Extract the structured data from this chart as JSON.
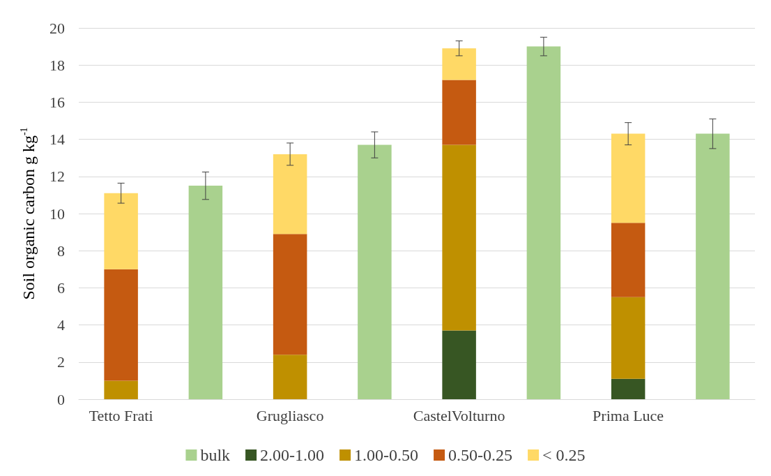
{
  "chart_data": {
    "type": "bar",
    "stacked": true,
    "ylabel": "Soil organic carbon g kg$^{-1}$",
    "categories": [
      "Tetto Frati",
      null,
      "Grugliasco",
      null,
      "CastelVolturno",
      null,
      "Prima Luce",
      null
    ],
    "series": [
      {
        "name": "bulk",
        "color": "#a9d18e",
        "values": [
          null,
          11.5,
          null,
          13.7,
          null,
          19.0,
          null,
          14.3
        ],
        "errors": [
          null,
          0.74,
          null,
          0.7,
          null,
          0.5,
          null,
          0.8
        ]
      },
      {
        "name": "2.00-1.00",
        "color": "#375623",
        "values": [
          null,
          null,
          null,
          null,
          3.7,
          null,
          1.1,
          null
        ]
      },
      {
        "name": "1.00-0.50",
        "color": "#bf9000",
        "values": [
          1.0,
          null,
          2.4,
          null,
          10.0,
          null,
          4.4,
          null
        ]
      },
      {
        "name": "0.50-0.25",
        "color": "#c55a11",
        "values": [
          6.0,
          null,
          6.5,
          null,
          3.5,
          null,
          4.0,
          null
        ]
      },
      {
        "name": "< 0.25",
        "color": "#ffd966",
        "values": [
          4.1,
          null,
          4.3,
          null,
          1.7,
          null,
          4.8,
          null
        ],
        "errors": [
          0.54,
          null,
          0.6,
          null,
          0.4,
          null,
          0.6,
          null
        ]
      }
    ],
    "ylim": [
      0,
      20
    ],
    "yticks": [
      0,
      2,
      4,
      6,
      8,
      10,
      12,
      14,
      16,
      18,
      20
    ],
    "grid": "y",
    "legend": "bottom"
  }
}
